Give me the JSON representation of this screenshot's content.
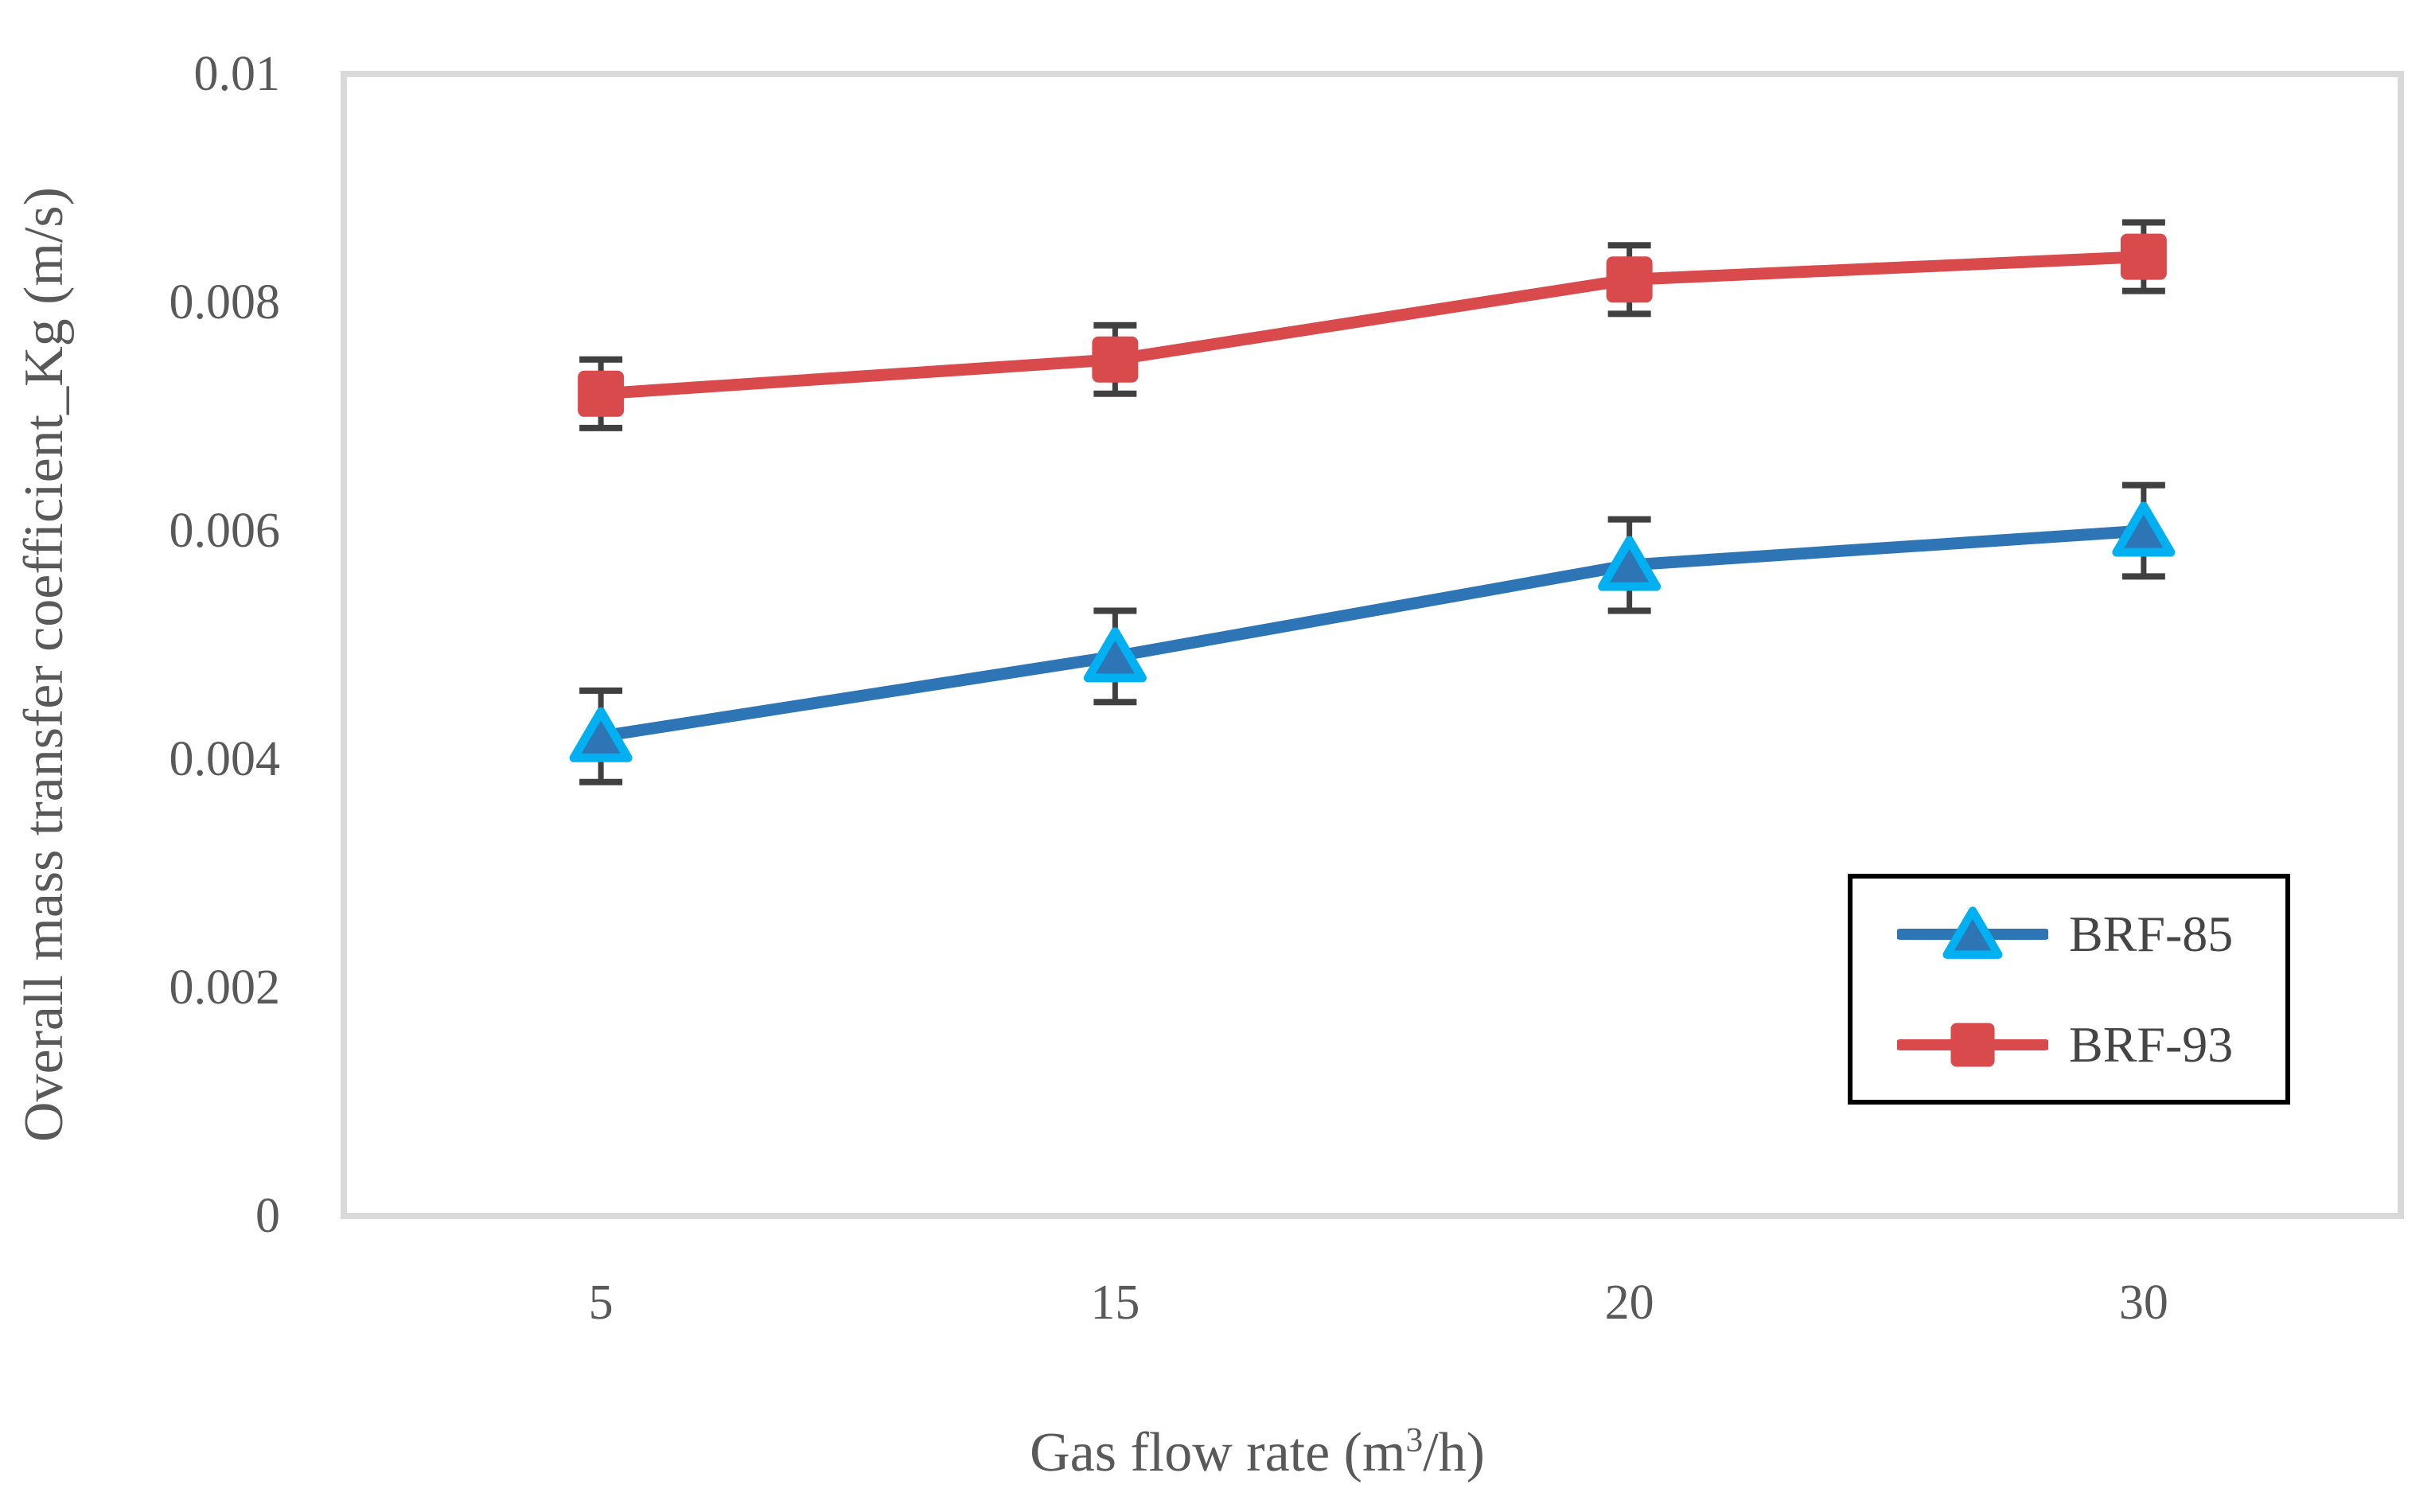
{
  "chart_data": {
    "type": "line",
    "title": "",
    "categories": [
      5,
      15,
      20,
      30
    ],
    "x_tick_labels": [
      "5",
      "15",
      "20",
      "30"
    ],
    "xlabel": "Gas flow rate (m³/h)",
    "xlabel_parts": {
      "pre": "Gas flow rate (m",
      "sup": "3",
      "post": "/h)"
    },
    "ylabel": "Overall mass transfer coefficient_Kg (m/s)",
    "ylim": [
      0,
      0.01
    ],
    "y_ticks": [
      0,
      0.002,
      0.004,
      0.006,
      0.008,
      0.01
    ],
    "y_tick_labels": [
      "0",
      "0.002",
      "0.004",
      "0.006",
      "0.008",
      "0.01"
    ],
    "grid": false,
    "legend_position": "bottom-right",
    "series": [
      {
        "name": "BRF-85",
        "color": "#2E75B6",
        "marker": "triangle",
        "marker_stroke": "#00B0F0",
        "values": [
          0.0042,
          0.0049,
          0.0057,
          0.006
        ],
        "error": [
          0.0004,
          0.0004,
          0.0004,
          0.0004
        ]
      },
      {
        "name": "BRF-93",
        "color": "#D94A4C",
        "marker": "square",
        "marker_stroke": "none",
        "values": [
          0.0072,
          0.0075,
          0.0082,
          0.0084
        ],
        "error": [
          0.0003,
          0.0003,
          0.0003,
          0.0003
        ]
      }
    ],
    "error_bar_color": "#404040",
    "plot_border_color": "#D9D9D9",
    "text_color": "#595959",
    "legend_border_color": "#000000"
  }
}
